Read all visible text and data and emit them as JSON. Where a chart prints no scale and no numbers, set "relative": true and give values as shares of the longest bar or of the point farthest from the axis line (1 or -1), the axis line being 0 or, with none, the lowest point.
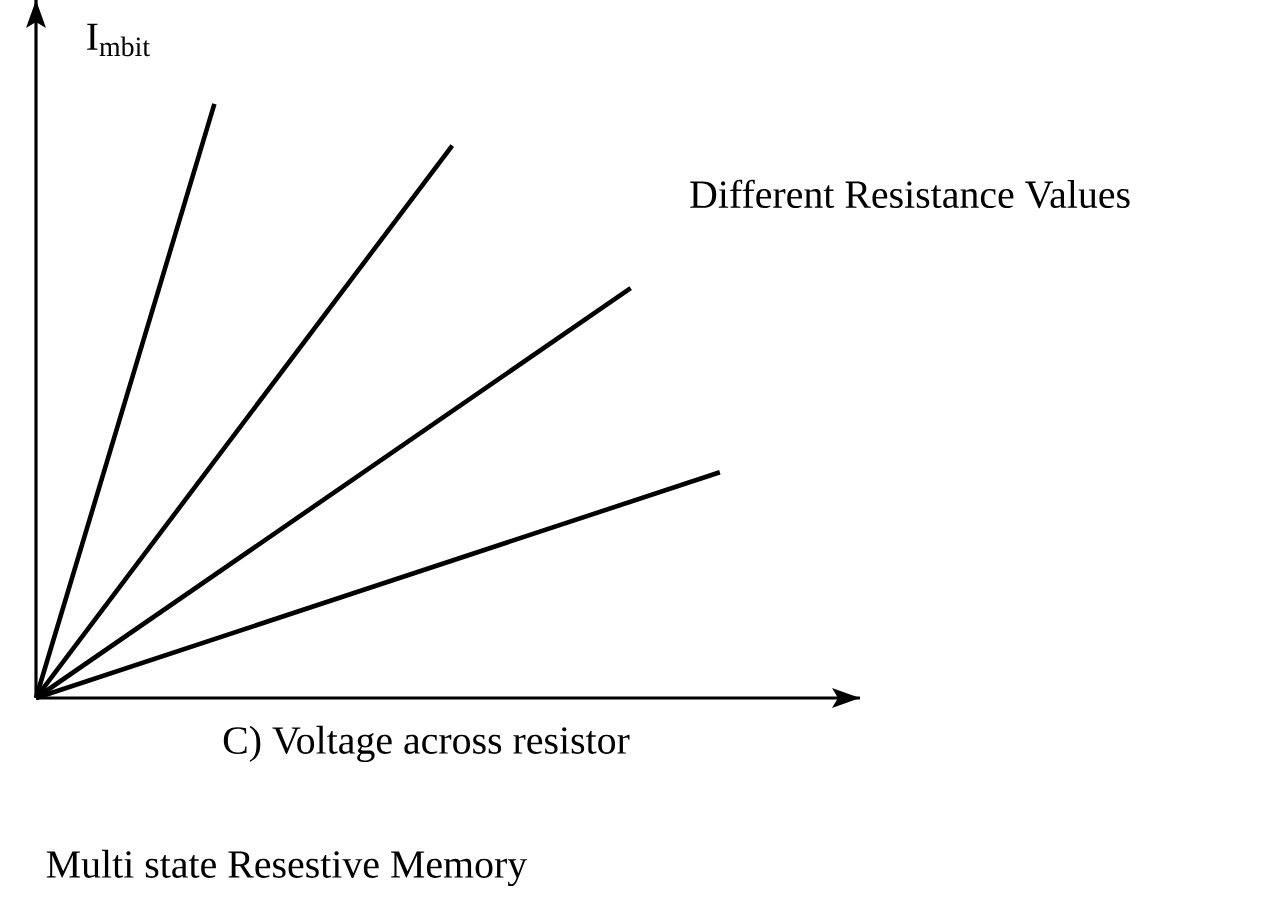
{
  "chart_data": {
    "type": "line",
    "relative": true,
    "xlabel": "C) Voltage across resistor",
    "ylabel": "I$_{mbit}$",
    "annotations": [
      "Different Resistance Values",
      "Multi state Resestive Memory"
    ],
    "categories": [
      null,
      null,
      null,
      null,
      null,
      null,
      null,
      null,
      null,
      null,
      null,
      null,
      null,
      null,
      null,
      null,
      null,
      null,
      null,
      null,
      null,
      null,
      null,
      null
    ],
    "series": [
      {
        "color": "#000000",
        "values": [
          0,
          null,
          null,
          null,
          null,
          null,
          1,
          null,
          null,
          null,
          null,
          null,
          null,
          null,
          null,
          null,
          null,
          null,
          null,
          null,
          null,
          null,
          null,
          null
        ]
      },
      {
        "color": "#000000",
        "values": [
          0,
          null,
          null,
          null,
          null,
          null,
          null,
          null,
          null,
          null,
          null,
          null,
          null,
          null,
          0.93,
          null,
          null,
          null,
          null,
          null,
          null,
          null,
          null,
          null
        ]
      },
      {
        "color": "#000000",
        "values": [
          0,
          null,
          null,
          null,
          null,
          null,
          null,
          null,
          null,
          null,
          null,
          null,
          null,
          null,
          null,
          null,
          null,
          null,
          null,
          null,
          0.69,
          null,
          null,
          null
        ]
      },
      {
        "color": "#000000",
        "values": [
          0,
          null,
          null,
          null,
          null,
          null,
          null,
          null,
          null,
          null,
          null,
          null,
          null,
          null,
          null,
          null,
          null,
          null,
          null,
          null,
          null,
          null,
          null,
          0.38
        ]
      }
    ]
  }
}
